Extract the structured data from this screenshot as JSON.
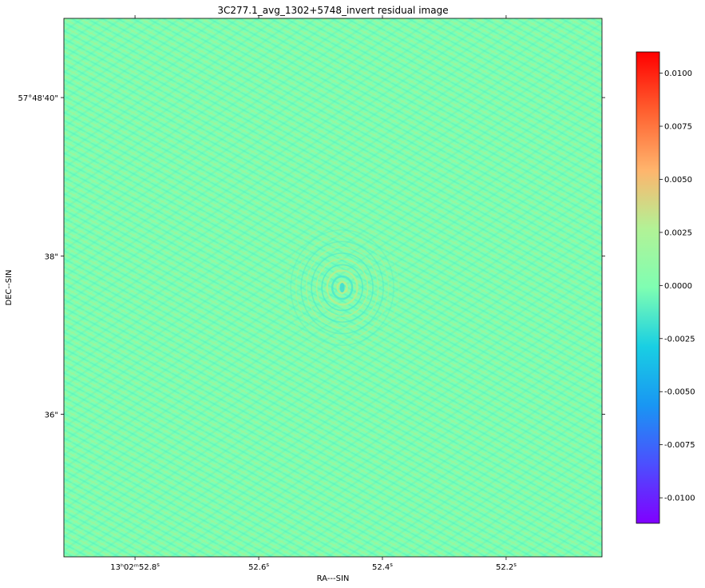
{
  "chart_data": {
    "type": "heatmap",
    "title": "3C277.1_avg_1302+5748_invert residual image",
    "xlabel": "RA---SIN",
    "ylabel": "DEC--SIN",
    "x_ticks": [
      {
        "label_main": "13ʰ02ᵐ52.8",
        "label_sup": "s",
        "value_s": 52.8
      },
      {
        "label_main": "52.6",
        "label_sup": "s",
        "value_s": 52.6
      },
      {
        "label_main": "52.4",
        "label_sup": "s",
        "value_s": 52.4
      },
      {
        "label_main": "52.2",
        "label_sup": "s",
        "value_s": 52.2
      }
    ],
    "y_ticks": [
      {
        "label": "57°48'40\"",
        "value_arcsec": 40
      },
      {
        "label": "38\"",
        "value_arcsec": 38
      },
      {
        "label": "36\"",
        "value_arcsec": 36
      }
    ],
    "xlim_ra_s": [
      52.915,
      52.045
    ],
    "ylim_dec_arcsec": [
      34.2,
      41.0
    ],
    "source_center": {
      "ra_s": 52.465,
      "dec_arcsec": 37.6
    },
    "colorbar": {
      "colormap": "rainbow",
      "vmin": -0.0112,
      "vmax": 0.011,
      "ticks": [
        0.01,
        0.0075,
        0.005,
        0.0025,
        0.0,
        -0.0025,
        -0.005,
        -0.0075,
        -0.01
      ],
      "tick_labels": [
        "0.0100",
        "0.0075",
        "0.0050",
        "0.0025",
        "0.0000",
        "-0.0025",
        "-0.0050",
        "-0.0075",
        "-0.0100"
      ]
    },
    "background_level": 0.0,
    "colors": {
      "background": "#7dffb4",
      "ripple_light": "#a8f28e",
      "ripple_dark": "#4af0c0"
    }
  }
}
